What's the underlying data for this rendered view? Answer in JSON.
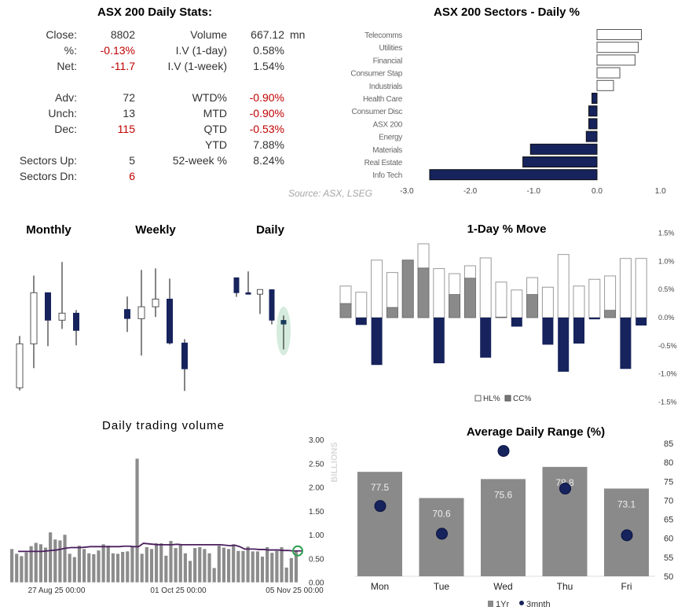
{
  "stats": {
    "title": "ASX 200 Daily Stats:",
    "left": [
      {
        "label": "Close:",
        "value": "8802",
        "neg": false
      },
      {
        "label": "%:",
        "value": "-0.13%",
        "neg": true
      },
      {
        "label": "Net:",
        "value": "-11.7",
        "neg": true
      },
      {
        "label": "Adv:",
        "value": "72",
        "neg": false
      },
      {
        "label": "Unch:",
        "value": "13",
        "neg": false
      },
      {
        "label": "Dec:",
        "value": "115",
        "neg": true
      },
      {
        "label": "Sectors Up:",
        "value": "5",
        "neg": false
      },
      {
        "label": "Sectors Dn:",
        "value": "6",
        "neg": true
      }
    ],
    "right": [
      {
        "label": "Volume",
        "value": "667.12",
        "neg": false
      },
      {
        "label": "I.V (1-day)",
        "value": "0.58%",
        "neg": false
      },
      {
        "label": "I.V (1-week)",
        "value": "1.54%",
        "neg": false
      },
      {
        "label": "WTD%",
        "value": "-0.90%",
        "neg": true
      },
      {
        "label": "MTD",
        "value": "-0.90%",
        "neg": true
      },
      {
        "label": "QTD",
        "value": "-0.53%",
        "neg": true
      },
      {
        "label": "YTD",
        "value": "7.88%",
        "neg": false
      },
      {
        "label": "52-week %",
        "value": "8.24%",
        "neg": false
      }
    ],
    "volume_unit": "mn"
  },
  "source": "Source: ASX, LSEG",
  "colors": {
    "navy": "#16235c",
    "gray": "#8a8a8a",
    "negative": "#c00000",
    "line": "#4b1f5e",
    "highlight": "#2e9e4f"
  },
  "chart_data": [
    {
      "type": "bar",
      "orientation": "horizontal",
      "title": "ASX 200 Sectors - Daily %",
      "categories": [
        "Telecomms",
        "Utilities",
        "Financial",
        "Consumer Stap",
        "Industrials",
        "Health Care",
        "Consumer Disc",
        "ASX 200",
        "Energy",
        "Materials",
        "Real Estate",
        "Info Tech"
      ],
      "values": [
        0.7,
        0.65,
        0.6,
        0.36,
        0.26,
        -0.08,
        -0.13,
        -0.13,
        -0.17,
        -1.05,
        -1.17,
        -2.64
      ],
      "xlim": [
        -3.0,
        1.0
      ],
      "xticks": [
        "-3.0",
        "-2.0",
        "-1.0",
        "0.0",
        "1.0"
      ],
      "grid": false
    },
    {
      "type": "candlestick",
      "groups": [
        {
          "title": "Monthly",
          "candles": [
            {
              "o": 9.4,
              "h": 40.3,
              "l": 7.8,
              "c": 35.6
            },
            {
              "o": 35.6,
              "h": 76.3,
              "l": 21.1,
              "c": 66.1
            },
            {
              "o": 66.3,
              "h": 66.3,
              "l": 34.2,
              "c": 49.5
            },
            {
              "o": 49.7,
              "h": 84.4,
              "l": 44.5,
              "c": 53.9
            },
            {
              "o": 54.1,
              "h": 55.8,
              "l": 34.7,
              "c": 43.4
            }
          ]
        },
        {
          "title": "Weekly",
          "candles": [
            {
              "o": 56.3,
              "h": 63.8,
              "l": 42.7,
              "c": 50.5
            },
            {
              "o": 50.6,
              "h": 79.7,
              "l": 28.6,
              "c": 57.7
            },
            {
              "o": 57.7,
              "h": 80.6,
              "l": 51.6,
              "c": 62.3
            },
            {
              "o": 62.5,
              "h": 74.5,
              "l": 35.2,
              "c": 35.9
            },
            {
              "o": 36.3,
              "h": 38.4,
              "l": 7.5,
              "c": 20.5
            }
          ]
        },
        {
          "title": "Daily",
          "candles": [
            {
              "o": 75.2,
              "h": 75.2,
              "l": 63.6,
              "c": 65.9
            },
            {
              "o": 66.3,
              "h": 78.8,
              "l": 65.0,
              "c": 65.0
            },
            {
              "o": 65.2,
              "h": 68.0,
              "l": 53.4,
              "c": 68.0
            },
            {
              "o": 68.1,
              "h": 68.1,
              "l": 47.2,
              "c": 49.5
            },
            {
              "o": 49.8,
              "h": 52.5,
              "l": 32.3,
              "c": 47.2
            }
          ]
        }
      ]
    },
    {
      "type": "bar",
      "title": "1-Day % Move",
      "series": [
        {
          "name": "HL%",
          "values": [
            0.56,
            0.45,
            1.02,
            0.8,
            1.02,
            1.31,
            0.87,
            0.78,
            0.92,
            1.06,
            0.63,
            0.49,
            0.71,
            0.54,
            1.12,
            0.56,
            0.68,
            0.74,
            1.05,
            1.05
          ]
        },
        {
          "name": "CC%",
          "values": [
            0.25,
            -0.13,
            -0.84,
            0.18,
            1.02,
            0.88,
            -0.81,
            0.41,
            0.7,
            -0.71,
            0.01,
            -0.16,
            0.41,
            -0.48,
            -0.96,
            -0.46,
            -0.03,
            0.13,
            -0.91,
            -0.14
          ]
        }
      ],
      "ylim": [
        -1.5,
        1.5
      ],
      "yticks": [
        "1.5%",
        "1.0%",
        "0.5%",
        "0.0%",
        "-0.5%",
        "-1.0%",
        "-1.5%"
      ],
      "legend": "bottom"
    },
    {
      "type": "bar",
      "title": "Daily trading volume",
      "ylabel": "BILLIONS",
      "ylim": [
        0,
        3.0
      ],
      "yticks": [
        "3.00",
        "2.50",
        "2.00",
        "1.50",
        "1.00",
        "0.50",
        "0.00"
      ],
      "xticks": [
        "27 Aug 25 00:00",
        "01 Oct 25 00:00",
        "05 Nov 25 00:00"
      ],
      "values": [
        0.7,
        0.6,
        0.55,
        0.63,
        0.76,
        0.83,
        0.8,
        0.73,
        1.05,
        0.9,
        0.88,
        1.0,
        0.6,
        0.53,
        0.77,
        0.7,
        0.61,
        0.59,
        0.67,
        0.8,
        0.77,
        0.61,
        0.6,
        0.64,
        0.65,
        0.75,
        2.6,
        0.6,
        0.74,
        0.7,
        0.82,
        0.82,
        0.56,
        0.87,
        0.72,
        0.8,
        0.61,
        0.45,
        0.72,
        0.74,
        0.7,
        0.61,
        0.3,
        0.77,
        0.73,
        0.7,
        0.8,
        0.66,
        0.66,
        0.75,
        0.65,
        0.65,
        0.54,
        0.74,
        0.62,
        0.66,
        0.74,
        0.31,
        0.51,
        0.67
      ],
      "average": [
        0.65,
        0.65,
        0.65,
        0.65,
        0.65,
        0.65,
        0.66,
        0.67,
        0.68,
        0.7,
        0.72,
        0.73,
        0.73,
        0.73,
        0.74,
        0.75,
        0.75,
        0.75,
        0.75,
        0.75,
        0.75,
        0.75,
        0.76,
        0.76,
        0.75,
        0.75,
        0.82,
        0.81,
        0.8,
        0.79,
        0.79,
        0.79,
        0.79,
        0.8,
        0.79,
        0.79,
        0.79,
        0.79,
        0.79,
        0.79,
        0.79,
        0.79,
        0.79,
        0.78,
        0.77,
        0.78,
        0.75,
        0.7,
        0.7,
        0.7,
        0.69,
        0.69,
        0.68,
        0.68,
        0.68,
        0.67,
        0.67,
        0.66,
        0.66,
        0.66
      ]
    },
    {
      "type": "bar",
      "title": "Average Daily Range (%)",
      "categories": [
        "Mon",
        "Tue",
        "Wed",
        "Thu",
        "Fri"
      ],
      "series": [
        {
          "name": "1Yr",
          "values": [
            77.5,
            70.6,
            75.6,
            78.8,
            73.1
          ],
          "labels": [
            "77.5",
            "70.6",
            "75.6",
            "78.8",
            "73.1"
          ]
        },
        {
          "name": "3mnth",
          "values": [
            68.5,
            61.2,
            83.0,
            73.1,
            60.8
          ]
        }
      ],
      "ylim": [
        50,
        85
      ],
      "yticks": [
        "85",
        "80",
        "75",
        "70",
        "65",
        "60",
        "55",
        "50"
      ],
      "legend": "bottom"
    }
  ]
}
